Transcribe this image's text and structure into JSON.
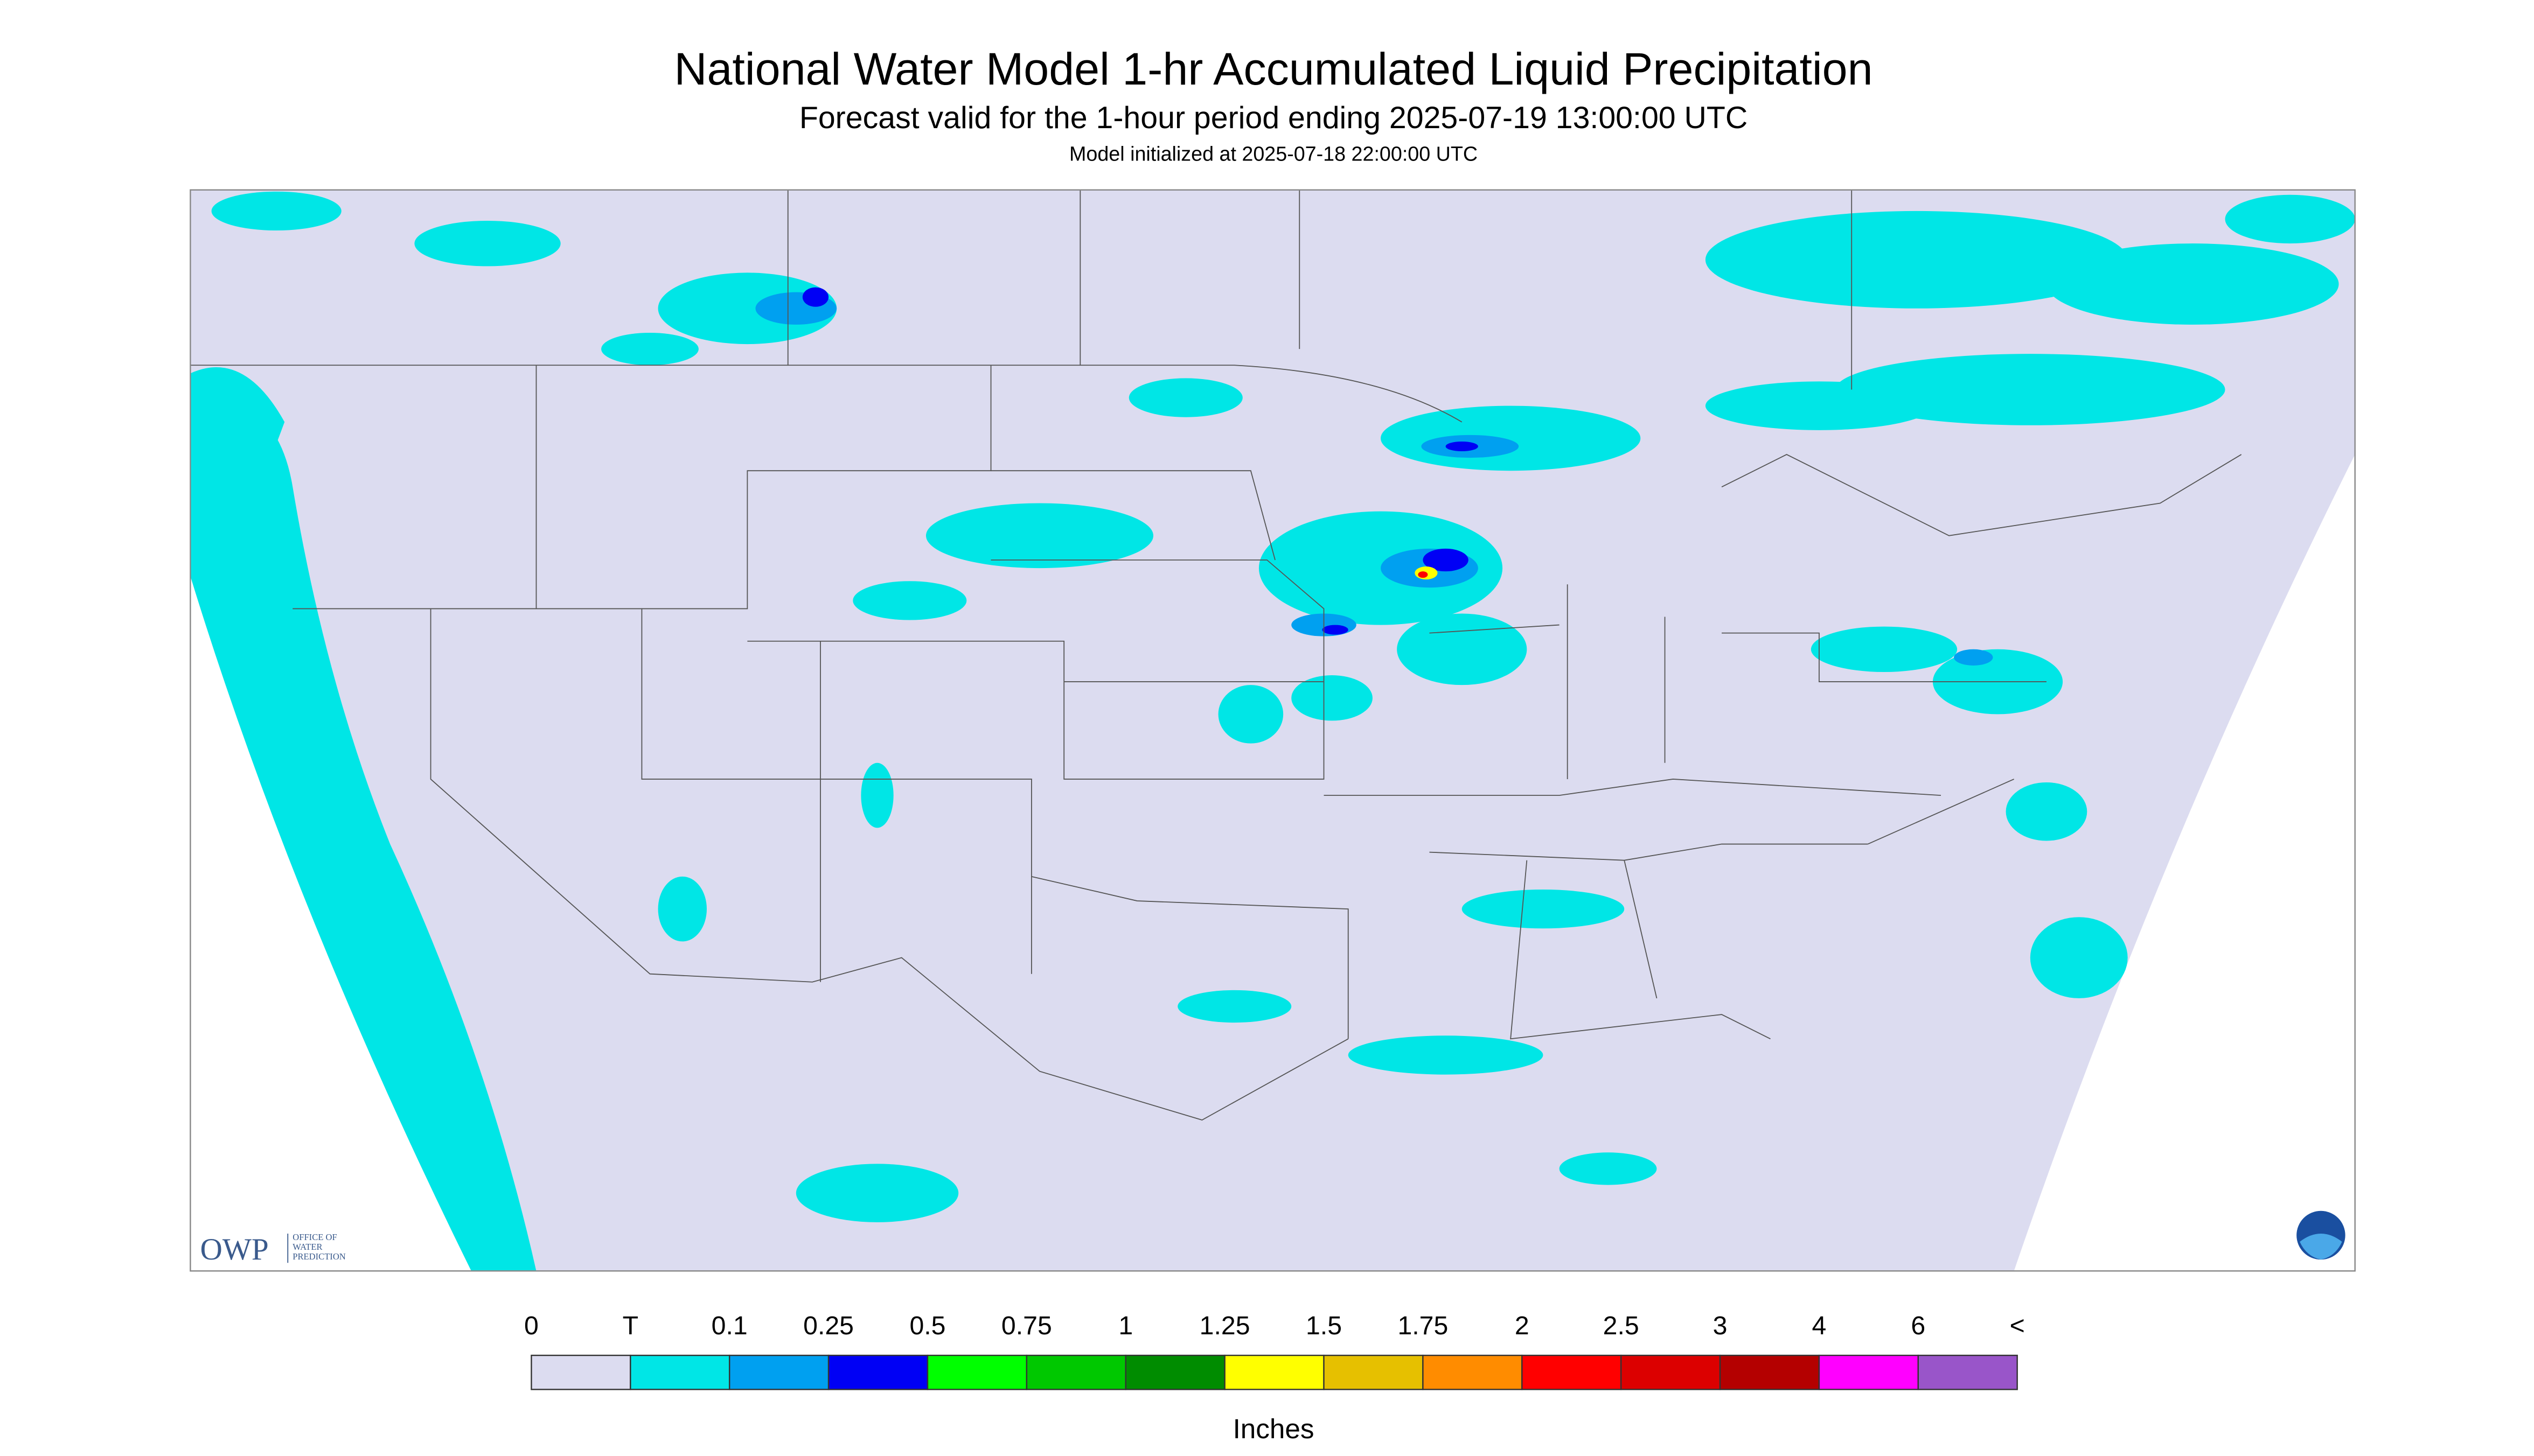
{
  "header": {
    "title": "National Water Model 1-hr Accumulated Liquid Precipitation",
    "subtitle": "Forecast valid for the 1-hour period ending 2025-07-19 13:00:00 UTC",
    "initialized": "Model initialized at 2025-07-18 22:00:00 UTC"
  },
  "logo": {
    "mark": "OWP",
    "text": [
      "OFFICE OF",
      "WATER",
      "PREDICTION"
    ]
  },
  "legend": {
    "labels": [
      "0",
      "T",
      "0.1",
      "0.25",
      "0.5",
      "0.75",
      "1",
      "1.25",
      "1.5",
      "1.75",
      "2",
      "2.5",
      "3",
      "4",
      "6",
      "<"
    ],
    "colors": [
      "#dcdcf0",
      "#00e6e6",
      "#00a0f0",
      "#0000f5",
      "#00ff00",
      "#00c800",
      "#008c00",
      "#ffff00",
      "#e6c000",
      "#ff8c00",
      "#ff0000",
      "#dc0000",
      "#b40000",
      "#ff00ff",
      "#9955c9"
    ],
    "unit": "Inches"
  }
}
